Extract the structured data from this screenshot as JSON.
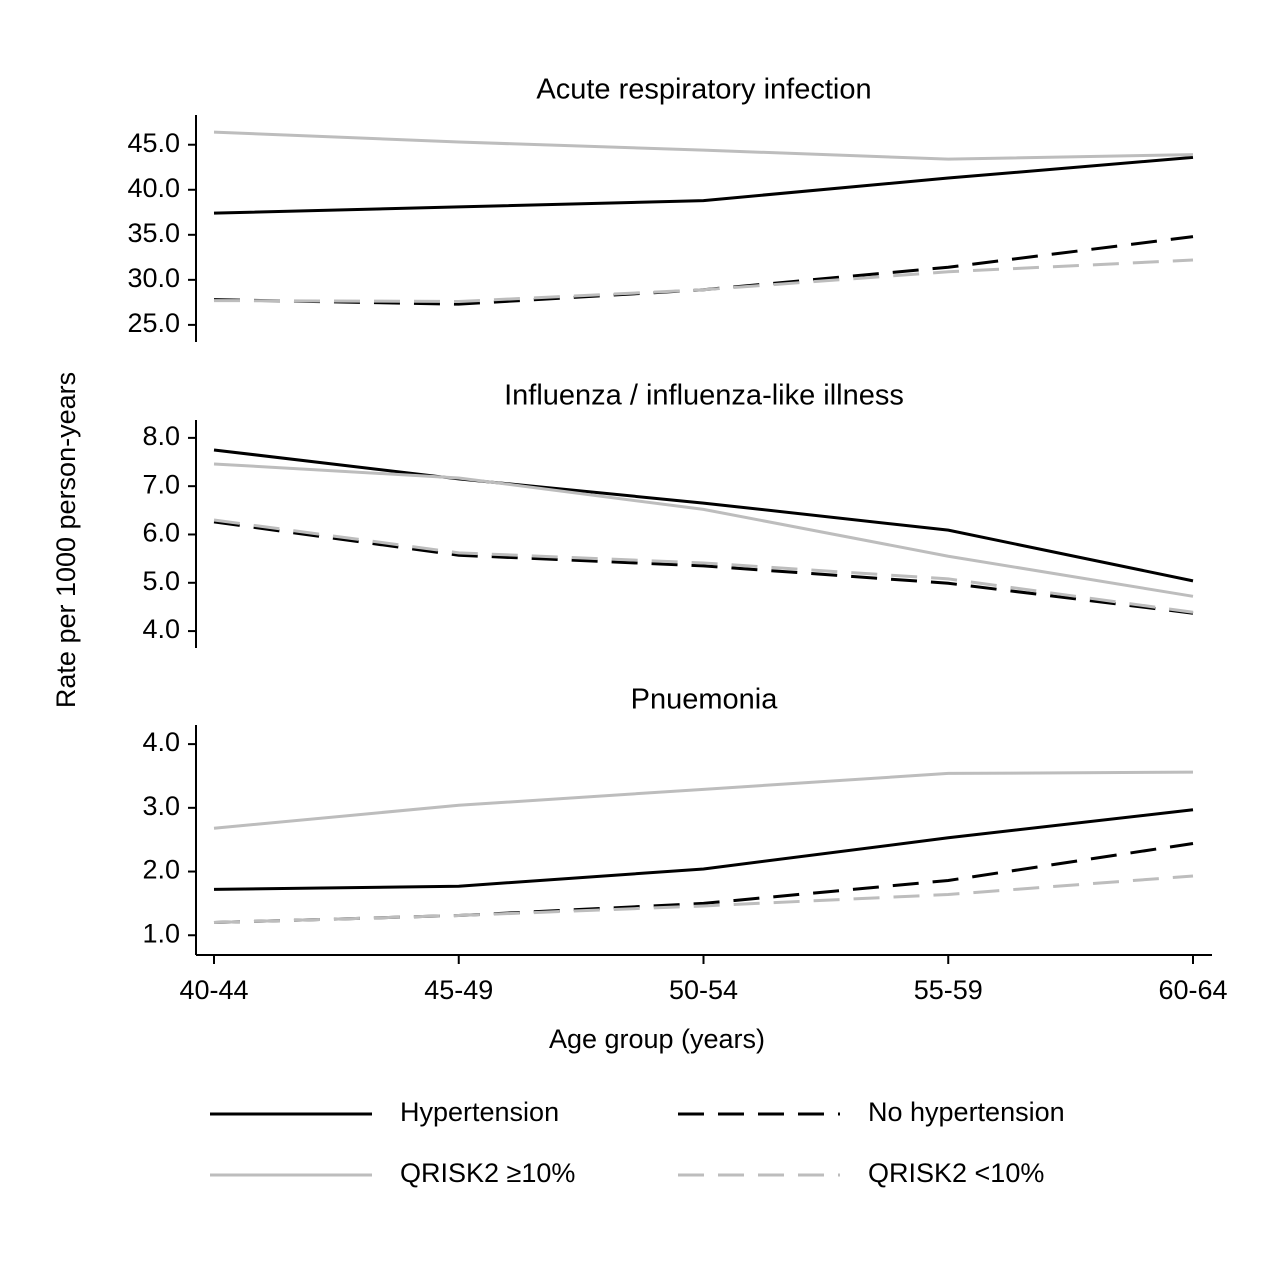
{
  "chart_data": [
    {
      "type": "line",
      "title": "Acute respiratory infection",
      "series": [
        {
          "name": "Hypertension",
          "color": "#000000",
          "dashed": false,
          "values": [
            37.4,
            38.1,
            38.8,
            41.3,
            43.6
          ]
        },
        {
          "name": "No hypertension",
          "color": "#000000",
          "dashed": true,
          "values": [
            27.8,
            27.3,
            28.9,
            31.4,
            34.8
          ]
        },
        {
          "name": "QRISK2 ≥10%",
          "color": "#bdbdbd",
          "dashed": false,
          "values": [
            46.4,
            45.3,
            44.4,
            43.4,
            43.9
          ]
        },
        {
          "name": "QRISK2 <10%",
          "color": "#bdbdbd",
          "dashed": true,
          "values": [
            27.7,
            27.6,
            28.9,
            30.9,
            32.2
          ]
        }
      ],
      "ylim": [
        23.1,
        48.3
      ],
      "yticks": [
        {
          "value": 25,
          "label": "25.0"
        },
        {
          "value": 30,
          "label": "30.0"
        },
        {
          "value": 35,
          "label": "35.0"
        },
        {
          "value": 40,
          "label": "40.0"
        },
        {
          "value": 45,
          "label": "45.0"
        }
      ]
    },
    {
      "type": "line",
      "title": "Influenza / influenza-like illness",
      "y_label": "Rate per 1000 person-years",
      "series": [
        {
          "color": "#000000",
          "dashed": false,
          "values": [
            7.75,
            7.15,
            6.65,
            6.09,
            5.04
          ]
        },
        {
          "color": "#000000",
          "dashed": true,
          "values": [
            6.26,
            5.57,
            5.35,
            4.99,
            4.37
          ]
        },
        {
          "color": "#bdbdbd",
          "dashed": false,
          "values": [
            7.46,
            7.17,
            6.52,
            5.55,
            4.72
          ]
        },
        {
          "color": "#bdbdbd",
          "dashed": true,
          "values": [
            6.3,
            5.62,
            5.41,
            5.08,
            4.39
          ]
        }
      ],
      "ylim": [
        3.65,
        8.37
      ],
      "yticks": [
        {
          "value": 4,
          "label": "4.0"
        },
        {
          "value": 5,
          "label": "5.0"
        },
        {
          "value": 6,
          "label": "6.0"
        },
        {
          "value": 7,
          "label": "7.0"
        },
        {
          "value": 8,
          "label": "8.0"
        }
      ]
    },
    {
      "type": "line",
      "title": "Pnuemonia",
      "x_label": "Age group (years)",
      "categories": [
        "40-44",
        "45-49",
        "50-54",
        "55-59",
        "60-64"
      ],
      "series": [
        {
          "color": "#000000",
          "dashed": false,
          "values": [
            1.72,
            1.77,
            2.04,
            2.53,
            2.97
          ]
        },
        {
          "color": "#000000",
          "dashed": true,
          "values": [
            1.2,
            1.31,
            1.5,
            1.86,
            2.44
          ]
        },
        {
          "color": "#bdbdbd",
          "dashed": false,
          "values": [
            2.68,
            3.04,
            3.29,
            3.54,
            3.56
          ]
        },
        {
          "color": "#bdbdbd",
          "dashed": true,
          "values": [
            1.2,
            1.31,
            1.46,
            1.64,
            1.93
          ]
        }
      ],
      "ylim": [
        0.69,
        4.3
      ],
      "yticks": [
        {
          "value": 1,
          "label": "1.0"
        },
        {
          "value": 2,
          "label": "2.0"
        },
        {
          "value": 3,
          "label": "3.0"
        },
        {
          "value": 4,
          "label": "4.0"
        }
      ]
    }
  ]
}
